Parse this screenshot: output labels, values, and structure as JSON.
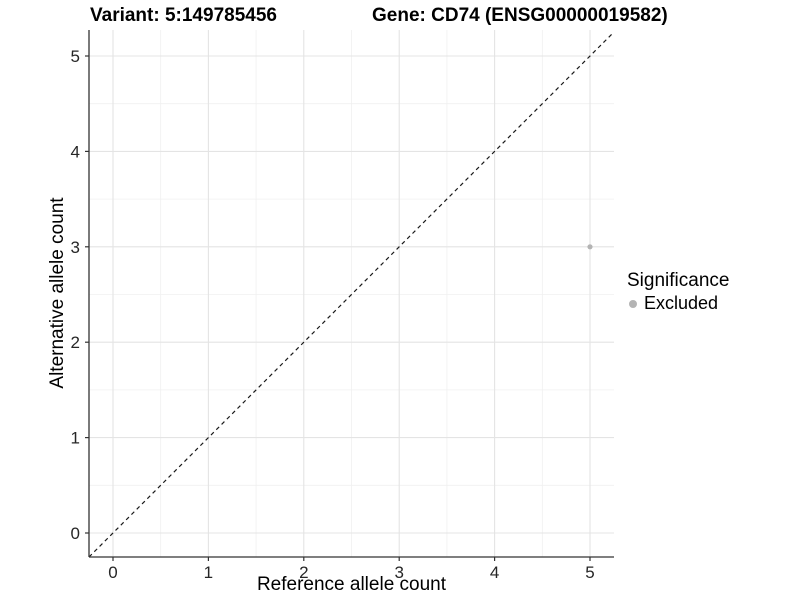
{
  "chart_data": {
    "type": "scatter",
    "title_left": "Variant: 5:149785456",
    "title_right": "Gene: CD74 (ENSG00000019582)",
    "xlabel": "Reference allele count",
    "ylabel": "Alternative allele count",
    "x_ticks": [
      0,
      1,
      2,
      3,
      4,
      5
    ],
    "y_ticks": [
      0,
      1,
      2,
      3,
      4,
      5
    ],
    "xlim": [
      -0.25,
      5.25
    ],
    "ylim": [
      -0.25,
      5.27
    ],
    "grid": "major and minor gridlines on, white background",
    "minor_step": 0.5,
    "reference_line": {
      "type": "identity",
      "slope": 1,
      "intercept": 0,
      "style": "dashed",
      "color": "#1a1a1a"
    },
    "series": [
      {
        "name": "Excluded",
        "color": "#b4b4b4",
        "points": [
          {
            "x": 5,
            "y": 3
          }
        ]
      }
    ],
    "legend": {
      "title": "Significance",
      "position": "right",
      "entries": [
        {
          "label": "Excluded",
          "color": "#b4b4b4"
        }
      ]
    }
  },
  "colors": {
    "background": "#ffffff",
    "grid_major": "#e4e4e4",
    "grid_minor": "#f0f0f0",
    "axis_line": "#333333",
    "tick_text": "#262626",
    "point": "#b4b4b4",
    "reference_line": "#1a1a1a"
  }
}
